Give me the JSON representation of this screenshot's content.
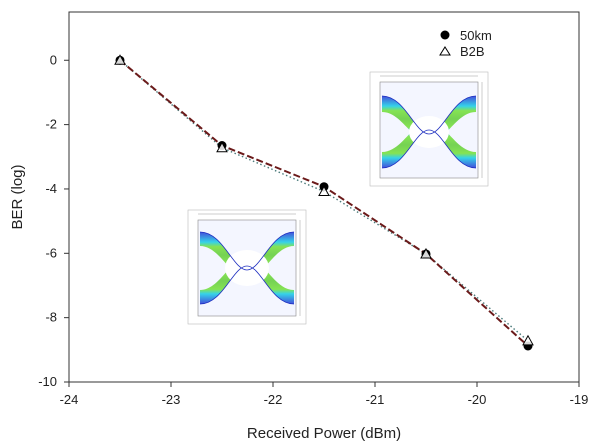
{
  "chart_data": {
    "type": "line",
    "xlabel": "Received Power (dBm)",
    "ylabel": "BER (log)",
    "xlim": [
      -24,
      -19
    ],
    "ylim": [
      -10,
      1.5
    ],
    "xticks": [
      -24,
      -23,
      -22,
      -21,
      -20,
      -19
    ],
    "yticks": [
      0,
      -2,
      -4,
      -6,
      -8,
      -10
    ],
    "grid": false,
    "legend_position": "top-right",
    "series": [
      {
        "name": "50km",
        "marker": "filled-circle",
        "line_style": "dashed",
        "color": "#6b1a1a",
        "x": [
          -23.5,
          -22.5,
          -21.5,
          -20.5,
          -19.5
        ],
        "y": [
          0.0,
          -2.65,
          -3.93,
          -6.02,
          -8.88
        ]
      },
      {
        "name": "B2B",
        "marker": "open-triangle",
        "line_style": "dotted",
        "color": "#4a7a7a",
        "x": [
          -23.5,
          -22.5,
          -21.5,
          -20.5,
          -19.5
        ],
        "y": [
          0.0,
          -2.72,
          -4.08,
          -6.02,
          -8.72
        ]
      }
    ],
    "insets": [
      {
        "name": "eye-diagram-b2b"
      },
      {
        "name": "eye-diagram-50km"
      }
    ]
  }
}
